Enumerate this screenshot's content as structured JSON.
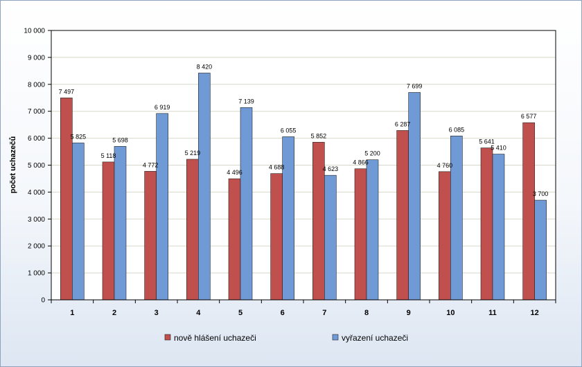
{
  "chart_data": {
    "type": "bar",
    "title": "",
    "xlabel": "",
    "ylabel": "počet uchazečů",
    "ylim": [
      0,
      10000
    ],
    "ytick_step": 1000,
    "ytick_labels": [
      "0",
      "1 000",
      "2 000",
      "3 000",
      "4 000",
      "5 000",
      "6 000",
      "7 000",
      "8 000",
      "9 000",
      "10 000"
    ],
    "categories": [
      "1",
      "2",
      "3",
      "4",
      "5",
      "6",
      "7",
      "8",
      "9",
      "10",
      "11",
      "12"
    ],
    "series": [
      {
        "name": "nově hlášení uchazeči",
        "color": "#c0504d",
        "values": [
          7497,
          5118,
          4772,
          5219,
          4496,
          4688,
          5852,
          4866,
          6287,
          4760,
          5641,
          6577
        ],
        "labels": [
          "7 497",
          "5 118",
          "4 772",
          "5 219",
          "4 496",
          "4 688",
          "5 852",
          "4 866",
          "6 287",
          "4 760",
          "5 641",
          "6 577"
        ]
      },
      {
        "name": "vyřazení uchazeči",
        "color": "#6f9ad6",
        "values": [
          5825,
          5698,
          6919,
          8420,
          7139,
          6055,
          4623,
          5200,
          7699,
          6085,
          5410,
          3700
        ],
        "labels": [
          "5 825",
          "5 698",
          "6 919",
          "8 420",
          "7 139",
          "6 055",
          "4 623",
          "5 200",
          "7 699",
          "6 085",
          "5 410",
          "3 700"
        ]
      }
    ],
    "grid": true,
    "legend_position": "bottom"
  }
}
